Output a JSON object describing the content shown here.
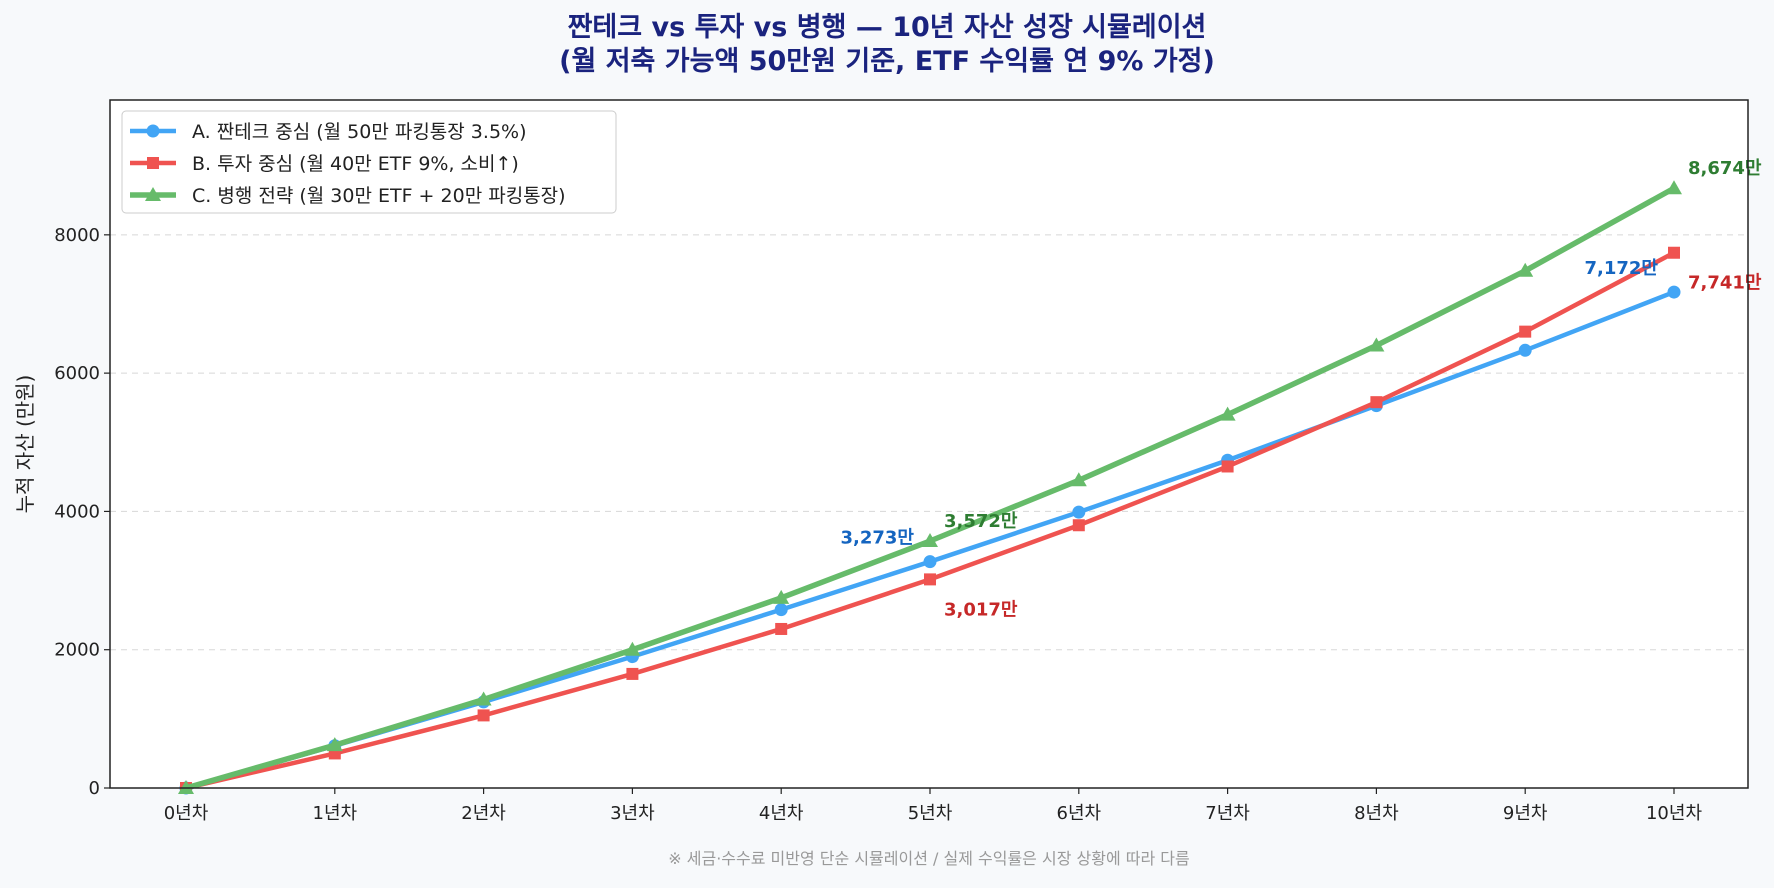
{
  "chart_data": {
    "type": "line",
    "title_line1": "짠테크 vs 투자 vs 병행 — 10년 자산 성장 시뮬레이션",
    "title_line2": "(월 저축 가능액 50만원 기준, ETF 수익률 연 9% 가정)",
    "ylabel": "누적 자산 (만원)",
    "xlabel": "",
    "categories": [
      "0년차",
      "1년차",
      "2년차",
      "3년차",
      "4년차",
      "5년차",
      "6년차",
      "7년차",
      "8년차",
      "9년차",
      "10년차"
    ],
    "ylim": [
      0,
      9950
    ],
    "yticks": [
      0,
      2000,
      4000,
      6000,
      8000
    ],
    "grid": "horizontal dashed",
    "legend_position": "top-left",
    "series": [
      {
        "name": "A. 짠테크 중심 (월 50만 파킹통장 3.5%)",
        "color": "#42a5f5",
        "label_color": "#1565c0",
        "marker": "circle",
        "values": [
          0,
          611,
          1245,
          1900,
          2580,
          3273,
          3990,
          4740,
          5530,
          6330,
          7172
        ]
      },
      {
        "name": "B. 투자 중심 (월 40만 ETF 9%, 소비↑)",
        "color": "#ef5350",
        "label_color": "#c62828",
        "marker": "square",
        "values": [
          0,
          500,
          1050,
          1650,
          2300,
          3017,
          3800,
          4650,
          5580,
          6600,
          7741
        ]
      },
      {
        "name": "C. 병행 전략 (월 30만 ETF + 20만 파킹통장)",
        "color": "#66bb6a",
        "label_color": "#2e7d32",
        "marker": "triangle",
        "values": [
          0,
          620,
          1280,
          2000,
          2750,
          3572,
          4450,
          5400,
          6400,
          7480,
          8674
        ]
      }
    ],
    "annotations": [
      {
        "series": 0,
        "index": 5,
        "text": "3,273만"
      },
      {
        "series": 1,
        "index": 5,
        "text": "3,017만"
      },
      {
        "series": 2,
        "index": 5,
        "text": "3,572만"
      },
      {
        "series": 0,
        "index": 10,
        "text": "7,172만"
      },
      {
        "series": 1,
        "index": 10,
        "text": "7,741만"
      },
      {
        "series": 2,
        "index": 10,
        "text": "8,674만"
      }
    ],
    "footnote": "※ 세금·수수료 미반영 단순 시뮬레이션 / 실제 수익률은 시장 상황에 따라 다름"
  }
}
